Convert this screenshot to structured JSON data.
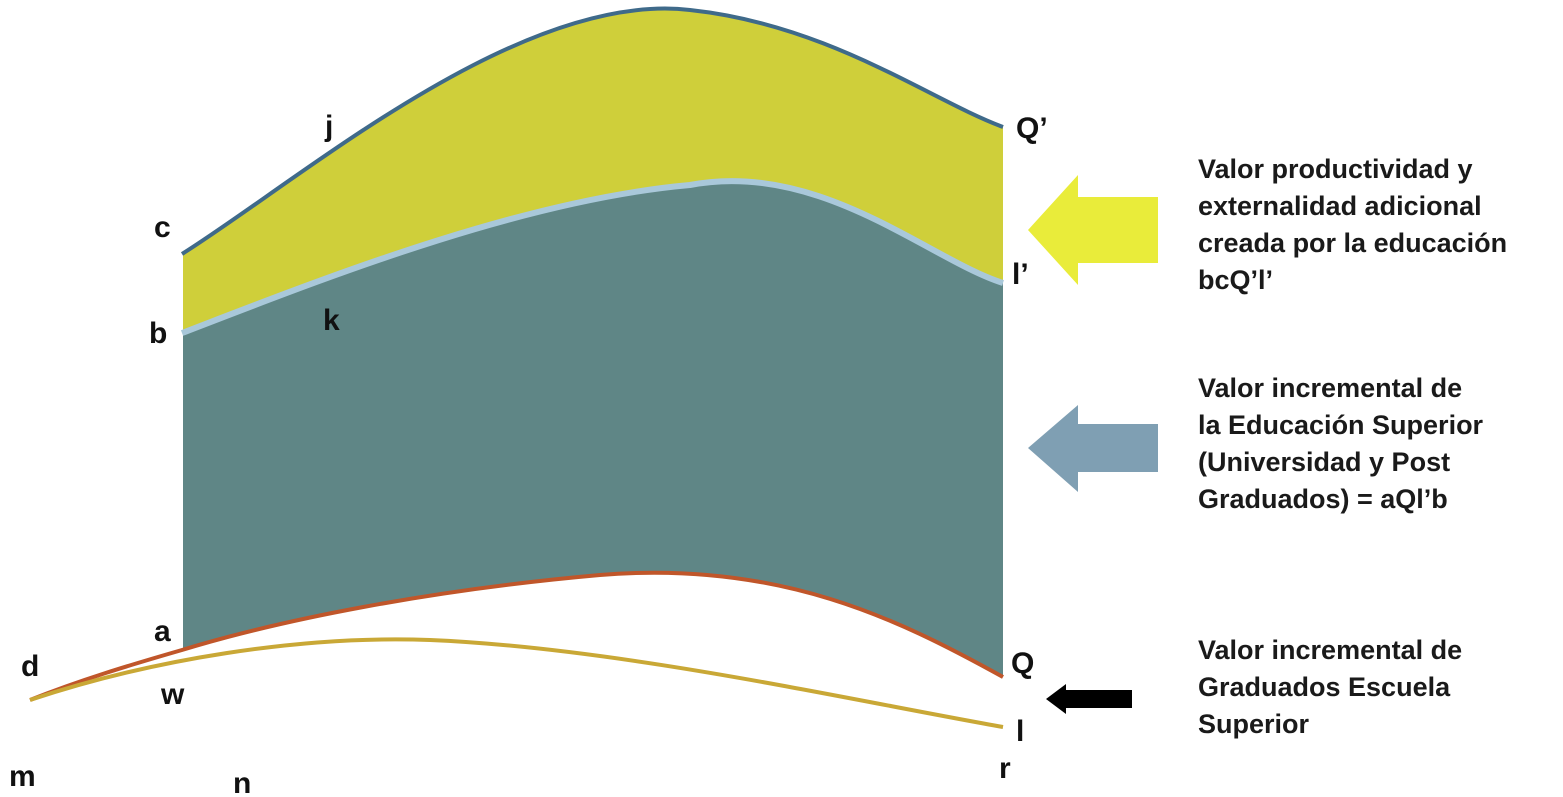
{
  "colors": {
    "top_band": "#cfcf3a",
    "middle_band": "#5f8686",
    "top_curve": "#3f6a8a",
    "separator_curve": "#a9c8da",
    "lower_curve": "#c0562a",
    "bottom_curve": "#c9a836",
    "arrow_yellow": "#e9ec3a",
    "arrow_blue": "#7f9fb3",
    "arrow_black": "#000000"
  },
  "point_labels": {
    "c": "c",
    "b": "b",
    "a": "a",
    "d": "d",
    "w": "w",
    "m": "m",
    "n": "n",
    "j": "j",
    "k": "k",
    "q_prime": "Q’",
    "l_prime": "l’",
    "q": "Q",
    "l": "l",
    "r": "r"
  },
  "legend": {
    "productivity": {
      "color": "#e9ec3a",
      "lines": [
        "Valor productividad y",
        "externalidad adicional",
        "creada por la educación",
        "bcQ’l’"
      ]
    },
    "higher_education": {
      "color": "#7f9fb3",
      "lines": [
        "Valor incremental de",
        "la Educación Superior",
        "(Universidad y Post",
        "Graduados) =  aQl’b"
      ]
    },
    "high_school": {
      "color": "#000000",
      "lines": [
        "Valor incremental de",
        "Graduados  Escuela",
        "Superior"
      ]
    }
  }
}
